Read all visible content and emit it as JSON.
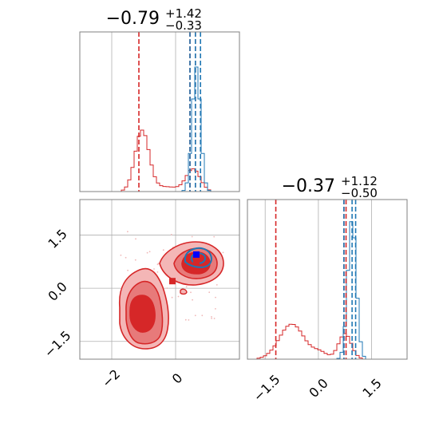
{
  "colors": {
    "red": "#d62728",
    "blue": "#1f77b4",
    "grid": "#b0b0b0",
    "frame": "#808080",
    "fill_light": "#f4b6b6",
    "fill_mid": "#e77a7a",
    "fill_dark": "#d62728"
  },
  "chart_data": [
    {
      "type": "histogram",
      "panel": "top-left",
      "title": {
        "main": "−0.79",
        "sup": "+1.42",
        "sub": "−0.33"
      },
      "xlim": [
        -3.0,
        2.0
      ],
      "grid": true,
      "series": [
        {
          "name": "",
          "color": "#d62728",
          "shape": "bimodal",
          "modes": [
            -1.05,
            0.55
          ],
          "quantiles": [
            -1.15,
            0.45,
            0.62
          ]
        },
        {
          "name": "",
          "color": "#1f77b4",
          "shape": "unimodal",
          "modes": [
            0.62
          ],
          "quantiles": [
            0.45,
            0.62,
            0.78
          ]
        }
      ]
    },
    {
      "type": "histogram",
      "panel": "bottom-right",
      "title": {
        "main": "−0.37",
        "sup": "+1.12",
        "sub": "−0.50"
      },
      "xlim": [
        -2.0,
        2.5
      ],
      "xticks": [
        "−1.5",
        "0.0",
        "1.5"
      ],
      "grid": true,
      "series": [
        {
          "name": "",
          "color": "#d62728",
          "shape": "bimodal",
          "modes": [
            -0.75,
            0.75
          ],
          "quantiles": [
            -1.2,
            0.72,
            0.78
          ]
        },
        {
          "name": "",
          "color": "#1f77b4",
          "shape": "unimodal",
          "modes": [
            0.95
          ],
          "quantiles": [
            0.72,
            0.95,
            1.05
          ]
        }
      ]
    },
    {
      "type": "contour",
      "panel": "bottom-left",
      "xlim": [
        -3.0,
        2.0
      ],
      "ylim": [
        -2.0,
        2.5
      ],
      "xticks": [
        "−2",
        "0"
      ],
      "yticks": [
        "−1.5",
        "0.0",
        "1.5"
      ],
      "grid": true,
      "markers": [
        {
          "x": -1.0,
          "y": -0.65,
          "color": "#d62728",
          "shape": "square"
        },
        {
          "x": -0.1,
          "y": 0.2,
          "color": "#d62728",
          "shape": "square"
        },
        {
          "x": 0.65,
          "y": 0.75,
          "color": "#d62728",
          "shape": "square"
        },
        {
          "x": 0.65,
          "y": 0.95,
          "color": "#0000ff",
          "shape": "square"
        }
      ]
    }
  ]
}
